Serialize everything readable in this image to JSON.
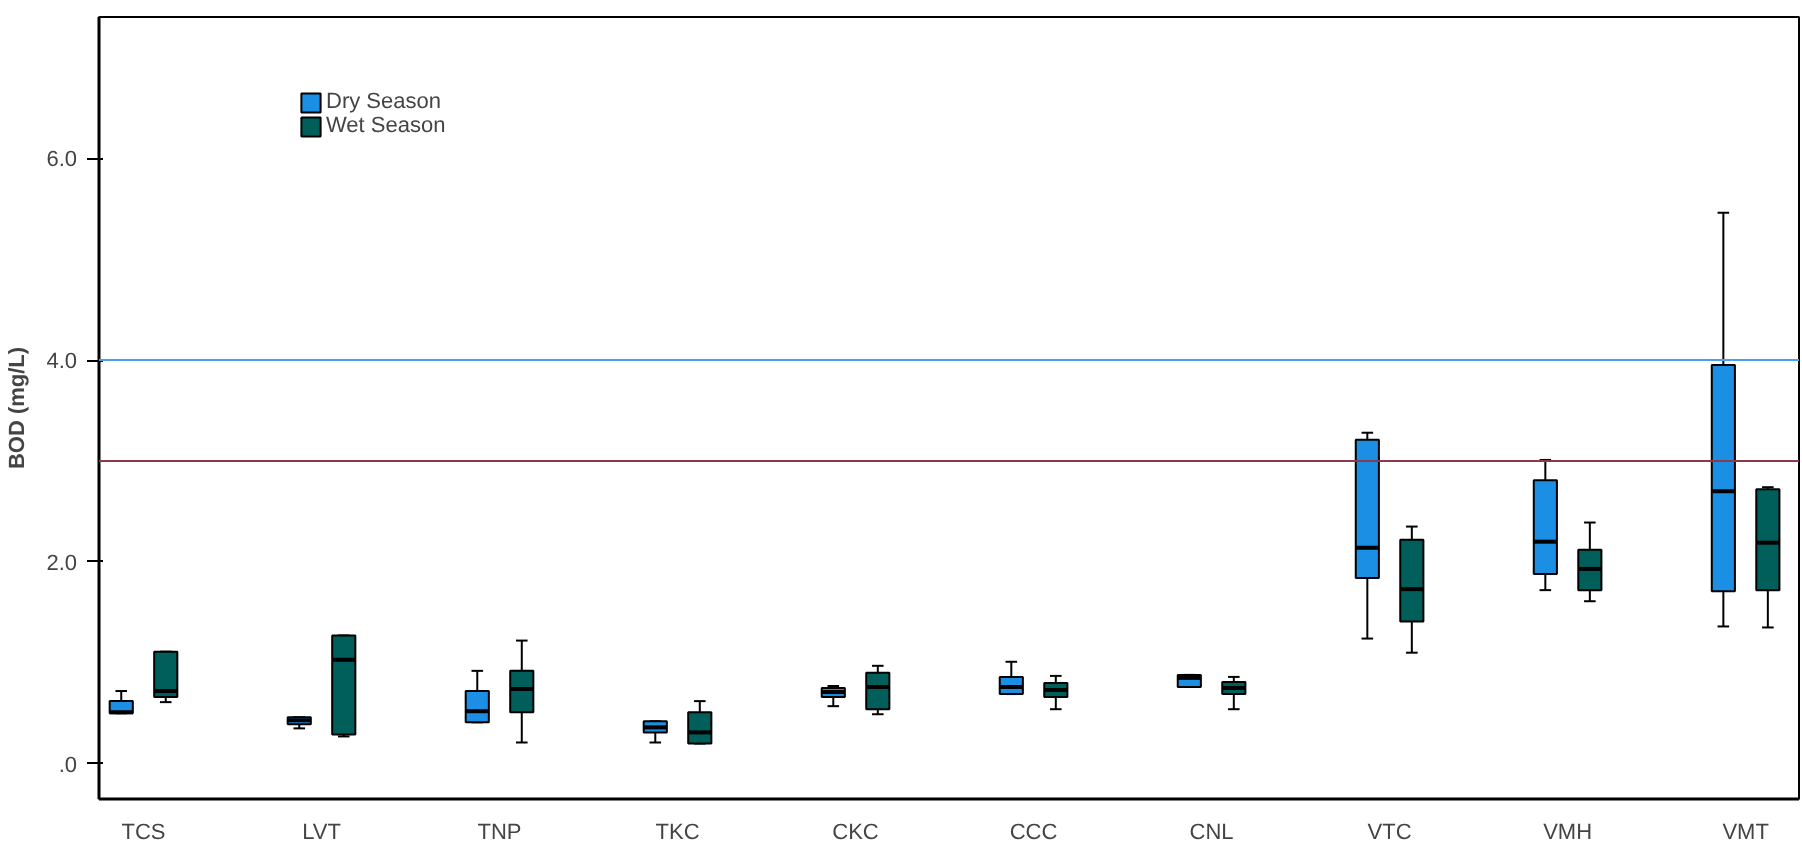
{
  "chart_data": {
    "type": "box",
    "ylabel": "BOD (mg/L)",
    "categories": [
      "TCS",
      "LVT",
      "TNP",
      "TKC",
      "CKC",
      "CCC",
      "CNL",
      "VTC",
      "VMH",
      "VMT"
    ],
    "ylim": [
      -0.35,
      7.4
    ],
    "yticks": [
      {
        "value": 0,
        "label": ".0"
      },
      {
        "value": 2,
        "label": "2.0"
      },
      {
        "value": 4,
        "label": "4.0"
      },
      {
        "value": 6,
        "label": "6.0"
      }
    ],
    "grid": false,
    "legend": "top left",
    "ref_lines": [
      {
        "axis": "y",
        "value": 4.0,
        "color": "#4a9ff0"
      },
      {
        "axis": "y",
        "value": 3.0,
        "color": "#8c3a4a"
      }
    ],
    "series": [
      {
        "name": "Dry Season",
        "color": "#1a8fe3",
        "boxes": [
          {
            "low": 0.5,
            "q1": 0.5,
            "median": 0.51,
            "q3": 0.62,
            "high": 0.72
          },
          {
            "low": 0.35,
            "q1": 0.39,
            "median": 0.43,
            "q3": 0.46,
            "high": 0.46
          },
          {
            "low": 0.41,
            "q1": 0.41,
            "median": 0.52,
            "q3": 0.72,
            "high": 0.92
          },
          {
            "low": 0.21,
            "q1": 0.31,
            "median": 0.36,
            "q3": 0.42,
            "high": 0.42
          },
          {
            "low": 0.57,
            "q1": 0.66,
            "median": 0.71,
            "q3": 0.75,
            "high": 0.77
          },
          {
            "low": 0.69,
            "q1": 0.69,
            "median": 0.76,
            "q3": 0.86,
            "high": 1.01
          },
          {
            "low": 0.76,
            "q1": 0.76,
            "median": 0.85,
            "q3": 0.88,
            "high": 0.88
          },
          {
            "low": 1.24,
            "q1": 1.84,
            "median": 2.14,
            "q3": 3.21,
            "high": 3.28
          },
          {
            "low": 1.72,
            "q1": 1.88,
            "median": 2.2,
            "q3": 2.81,
            "high": 3.01
          },
          {
            "low": 1.36,
            "q1": 1.71,
            "median": 2.7,
            "q3": 3.95,
            "high": 5.46
          }
        ]
      },
      {
        "name": "Wet Season",
        "color": "#005f5a",
        "boxes": [
          {
            "low": 0.61,
            "q1": 0.66,
            "median": 0.72,
            "q3": 1.11,
            "high": 1.11
          },
          {
            "low": 0.27,
            "q1": 0.29,
            "median": 1.03,
            "q3": 1.27,
            "high": 1.27
          },
          {
            "low": 0.21,
            "q1": 0.51,
            "median": 0.74,
            "q3": 0.92,
            "high": 1.22
          },
          {
            "low": 0.2,
            "q1": 0.2,
            "median": 0.31,
            "q3": 0.51,
            "high": 0.62
          },
          {
            "low": 0.49,
            "q1": 0.54,
            "median": 0.76,
            "q3": 0.9,
            "high": 0.97
          },
          {
            "low": 0.54,
            "q1": 0.66,
            "median": 0.73,
            "q3": 0.8,
            "high": 0.87
          },
          {
            "low": 0.54,
            "q1": 0.69,
            "median": 0.75,
            "q3": 0.81,
            "high": 0.86
          },
          {
            "low": 1.1,
            "q1": 1.41,
            "median": 1.73,
            "q3": 2.22,
            "high": 2.35
          },
          {
            "low": 1.61,
            "q1": 1.72,
            "median": 1.93,
            "q3": 2.12,
            "high": 2.39
          },
          {
            "low": 1.35,
            "q1": 1.72,
            "median": 2.19,
            "q3": 2.72,
            "high": 2.74
          }
        ]
      }
    ]
  }
}
